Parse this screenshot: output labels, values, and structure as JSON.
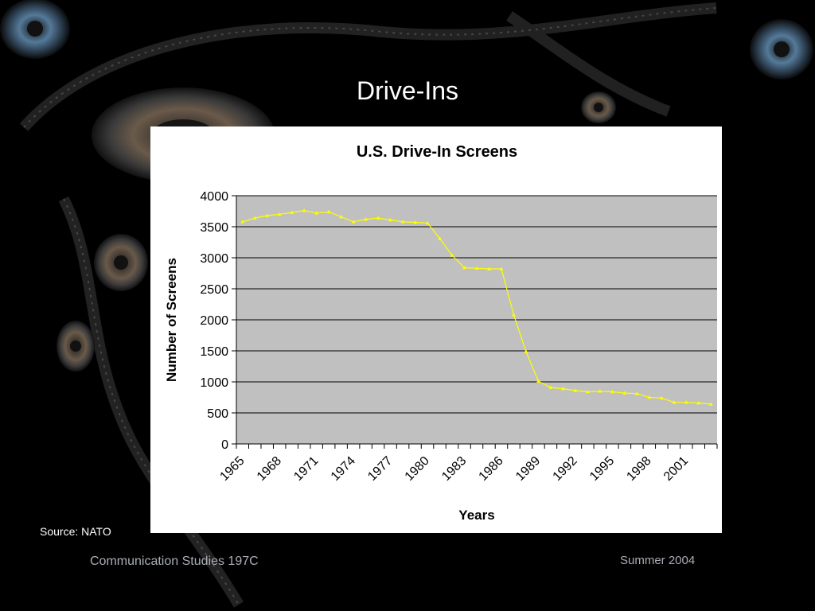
{
  "slide": {
    "title": "Drive-Ins",
    "source": "Source: NATO",
    "footer_left": "Communication Studies 197C",
    "footer_right": "Summer 2004"
  },
  "colors": {
    "background": "#000000",
    "plot_area": "#c0c0c0",
    "series_line": "#ffff00",
    "gridline": "#000000",
    "footer_text": "#a9adb8"
  },
  "icons": [
    "film-reel-icon",
    "film-strip-icon"
  ],
  "chart_data": {
    "type": "line",
    "title": "U.S. Drive-In Screens",
    "xlabel": "Years",
    "ylabel": "Number of Screens",
    "ylim": [
      0,
      4000
    ],
    "yticks": [
      0,
      500,
      1000,
      1500,
      2000,
      2500,
      3000,
      3500,
      4000
    ],
    "xtick_labels": [
      "1965",
      "1968",
      "1971",
      "1974",
      "1977",
      "1980",
      "1983",
      "1986",
      "1989",
      "1992",
      "1995",
      "1998",
      "2001"
    ],
    "grid": true,
    "legend": "none",
    "x": [
      1965,
      1966,
      1967,
      1968,
      1969,
      1970,
      1971,
      1972,
      1973,
      1974,
      1975,
      1976,
      1977,
      1978,
      1979,
      1980,
      1981,
      1982,
      1983,
      1984,
      1985,
      1986,
      1987,
      1988,
      1989,
      1990,
      1991,
      1992,
      1993,
      1994,
      1995,
      1996,
      1997,
      1998,
      1999,
      2000,
      2001,
      2002,
      2003
    ],
    "series": [
      {
        "values": [
          3580,
          3640,
          3680,
          3700,
          3730,
          3760,
          3720,
          3740,
          3660,
          3580,
          3620,
          3640,
          3610,
          3580,
          3570,
          3560,
          3310,
          3040,
          2840,
          2830,
          2820,
          2820,
          2080,
          1490,
          1010,
          910,
          890,
          860,
          840,
          850,
          840,
          820,
          810,
          750,
          740,
          670,
          670,
          660,
          640
        ]
      }
    ]
  }
}
